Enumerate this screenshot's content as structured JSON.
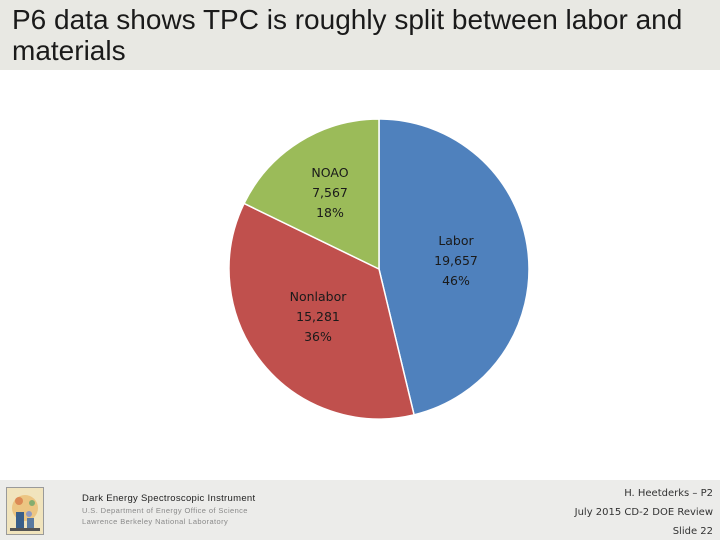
{
  "slide": {
    "title": "P6 data shows TPC is roughly split between labor and materials"
  },
  "chart_data": {
    "type": "pie",
    "title": "",
    "slices": [
      {
        "name": "Labor",
        "value": 19657,
        "value_label": "19,657",
        "percent_label": "46%",
        "color": "#4f81bd"
      },
      {
        "name": "Nonlabor",
        "value": 15281,
        "value_label": "15,281",
        "percent_label": "36%",
        "color": "#c0504d"
      },
      {
        "name": "NOAO",
        "value": 7567,
        "value_label": "7,567",
        "percent_label": "18%",
        "color": "#9bbb59"
      }
    ],
    "start_angle": "12 o'clock, clockwise",
    "legend": "none",
    "border_color": "#ffffff"
  },
  "footer": {
    "org_line1": "Dark Energy Spectroscopic Instrument",
    "org_line2": "U.S. Department of Energy Office of Science",
    "org_line3": "Lawrence Berkeley National Laboratory",
    "author": "H. Heetderks – P2",
    "review": "July 2015 CD-2 DOE Review",
    "slide_number": "Slide 22"
  },
  "logo": {
    "icon": "desi-logo-icon"
  }
}
